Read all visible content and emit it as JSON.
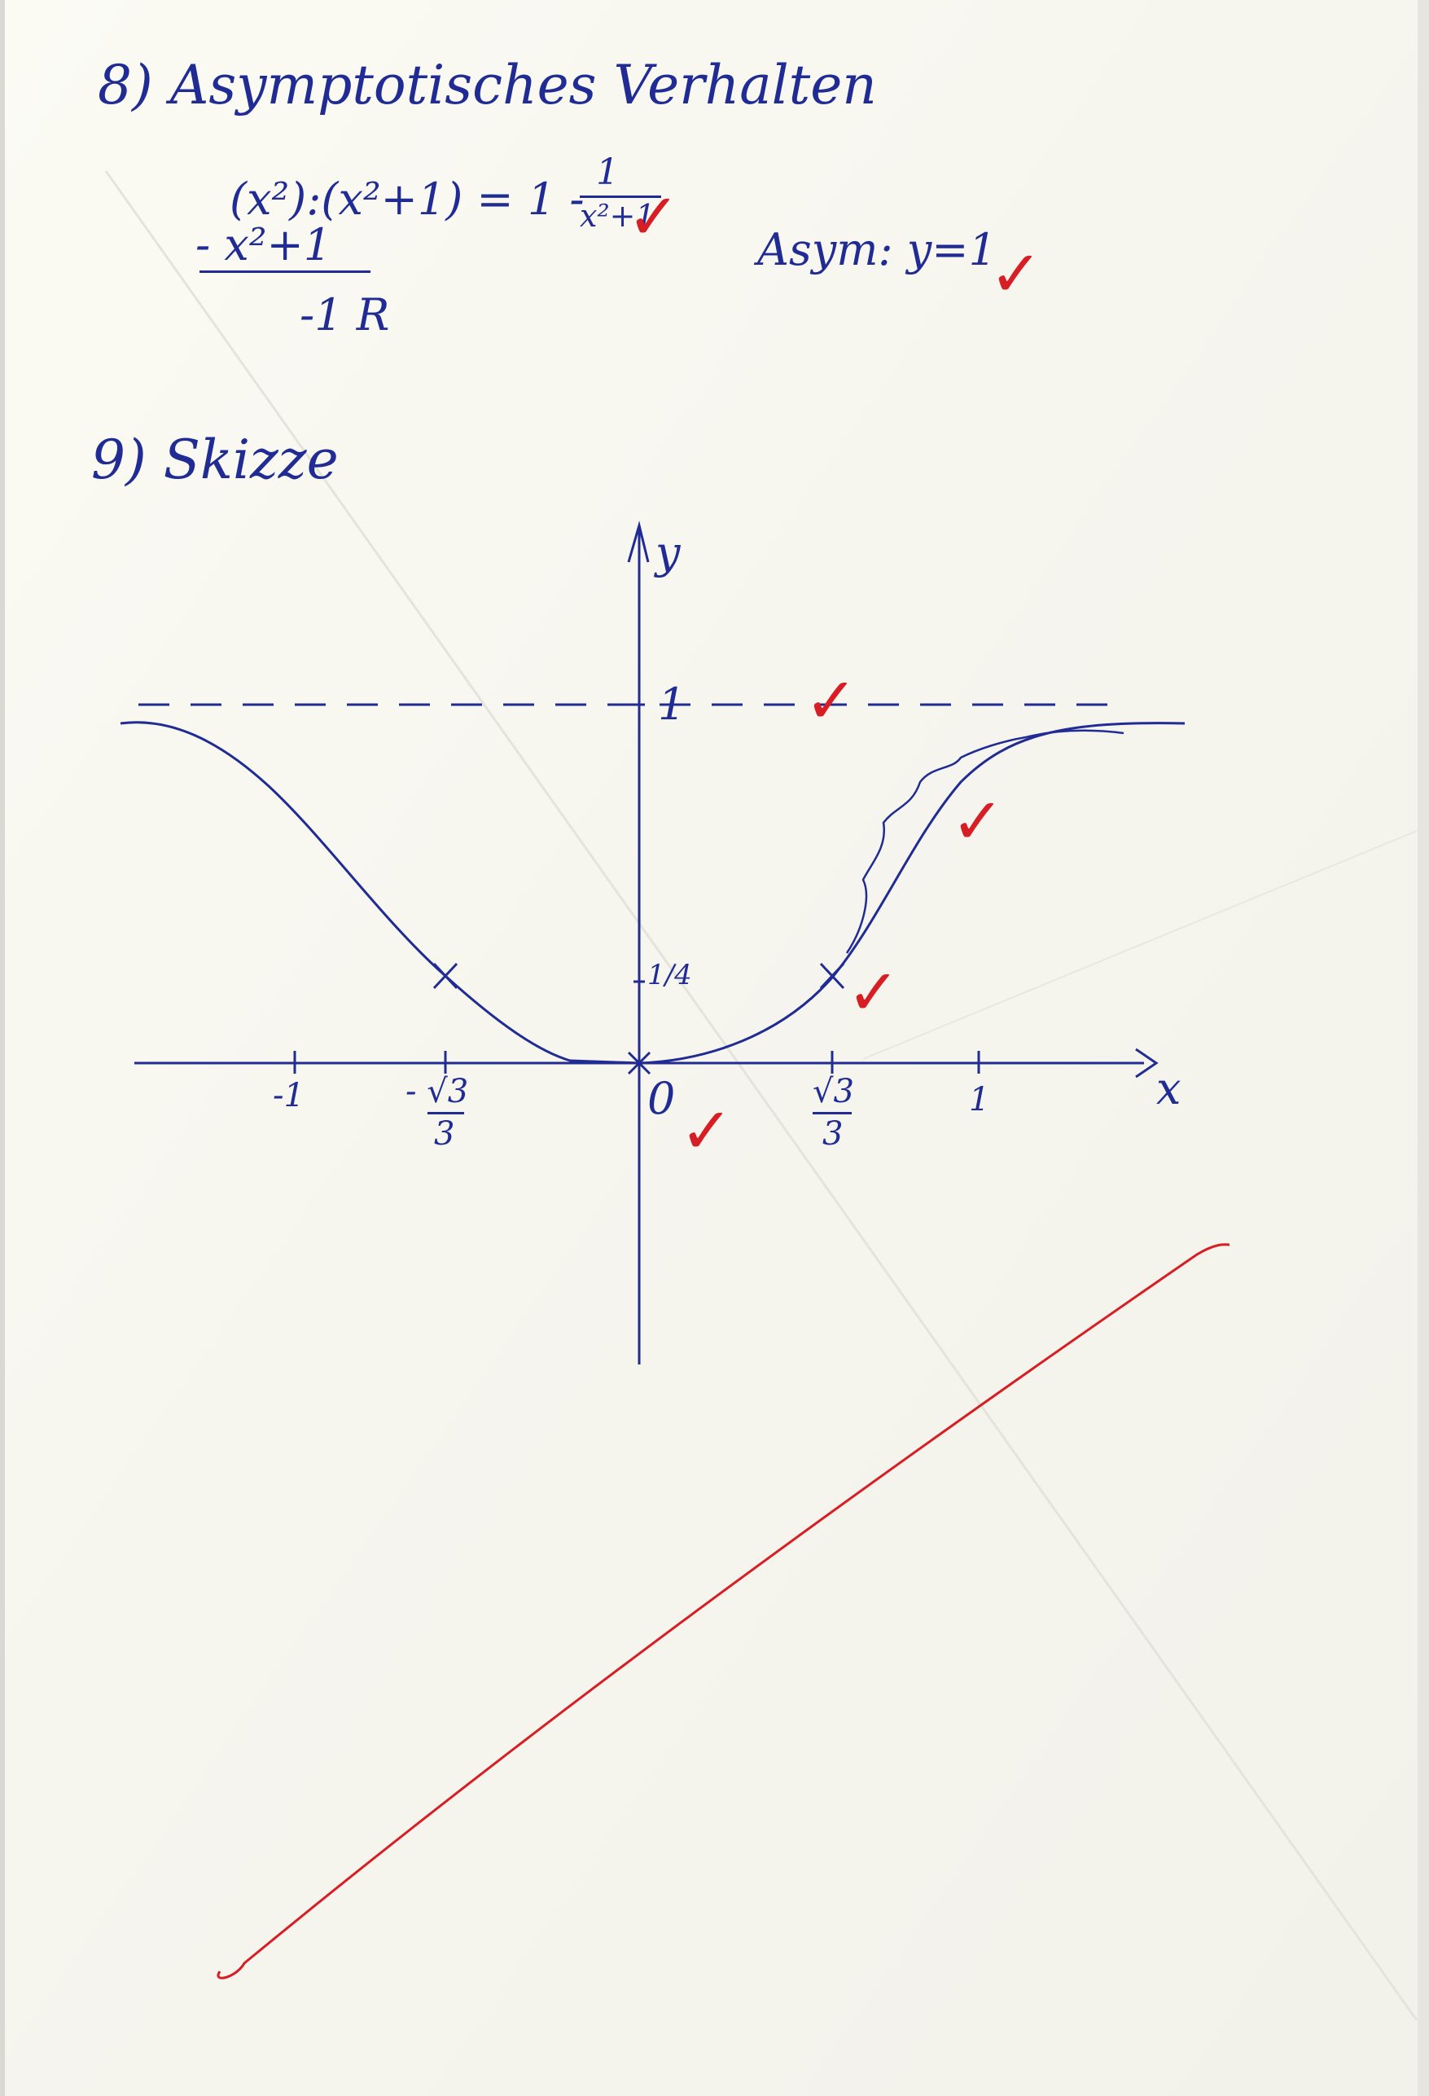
{
  "section8": {
    "heading": "8) Asymptotisches Verhalten",
    "division_line": "(x²):(x²+1) = 1 -",
    "result_numerator": "1",
    "result_denominator": "x²+1",
    "subtract_line": "- x²+1",
    "remainder_line": "-1 R",
    "asymptote_note": "Asym: y=1"
  },
  "section9": {
    "heading": "9) Skizze",
    "axis_y_label": "y",
    "axis_x_label": "x",
    "asymptote_label": "1",
    "y_tick_label": "1/4",
    "x_tick_neg1": "-1",
    "x_tick_negsqrt_num": "- √3",
    "x_tick_negsqrt_den": "3",
    "origin_label": "0",
    "x_tick_sqrt_num": "√3",
    "x_tick_sqrt_den": "3",
    "x_tick_pos1": "1"
  },
  "checks": {
    "symbol": "✓"
  },
  "colors": {
    "ink": "#202c93",
    "correction": "#d81e25",
    "paper": "#f7f6ef"
  }
}
